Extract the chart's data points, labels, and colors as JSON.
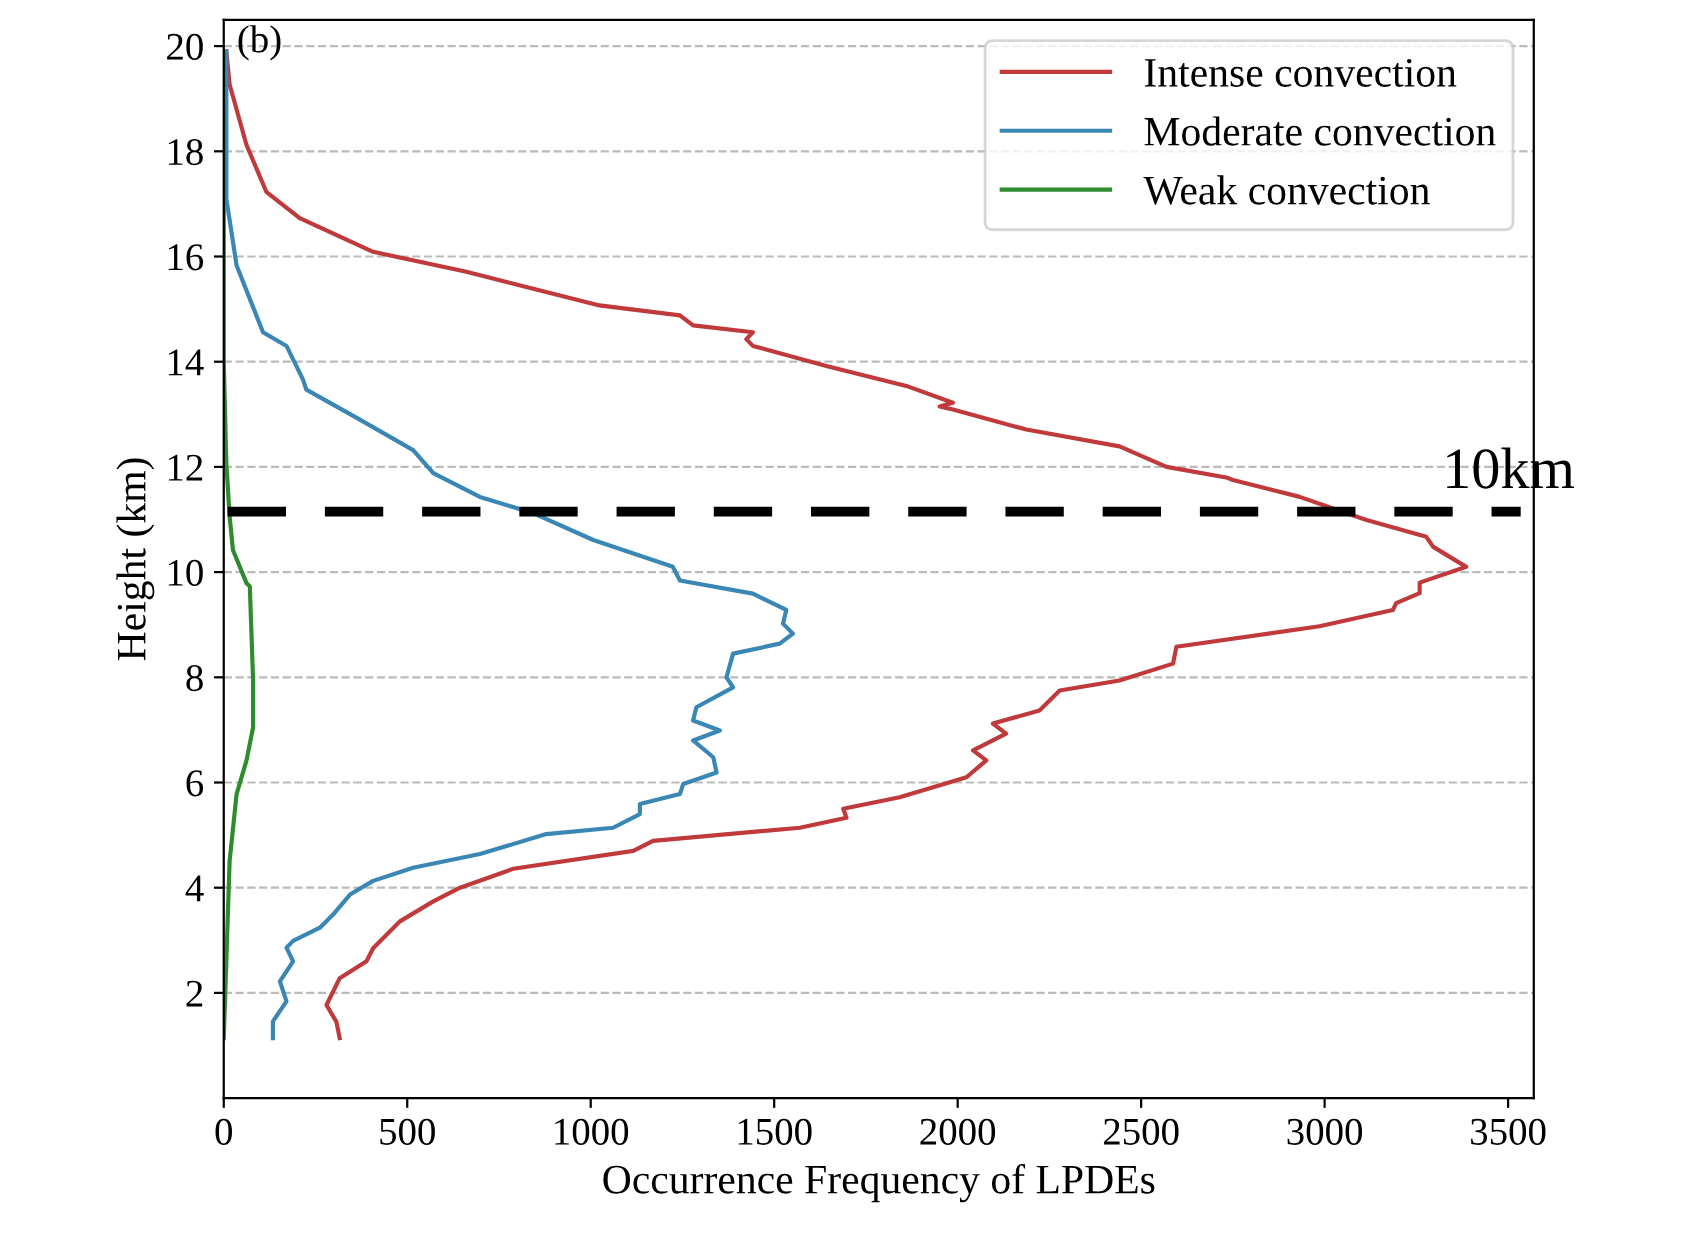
{
  "chart_data": {
    "type": "line",
    "xlabel": "Occurrence Frequency of LPDEs",
    "ylabel": "Height (km)",
    "annotations": [
      "(b)"
    ],
    "series": [
      {
        "name": "Intense convection",
        "color": "#c0393b",
        "x": [
          7,
          16,
          62,
          116,
          207,
          407,
          661,
          1024,
          1243,
          1279,
          1442,
          1424,
          1442,
          1642,
          1860,
          1987,
          1951,
          1987,
          2187,
          2441,
          2569,
          2732,
          2750,
          2932,
          3114,
          3277,
          3296,
          3386,
          3259,
          3259,
          3195,
          3186,
          2986,
          2596,
          2587,
          2441,
          2278,
          2223,
          2096,
          2132,
          2042,
          2078,
          2024,
          1842,
          1688,
          1697,
          1570,
          1170,
          1116,
          789,
          644,
          571,
          480,
          407,
          389,
          316,
          280,
          307,
          316
        ],
        "values": [
          19.9,
          19.27,
          18.12,
          17.23,
          16.73,
          16.09,
          15.71,
          15.07,
          14.88,
          14.69,
          14.56,
          14.43,
          14.3,
          13.92,
          13.54,
          13.22,
          13.15,
          13.09,
          12.71,
          12.39,
          12.0,
          11.8,
          11.75,
          11.43,
          10.99,
          10.67,
          10.48,
          10.1,
          9.8,
          9.6,
          9.41,
          9.28,
          8.97,
          8.58,
          8.26,
          7.94,
          7.75,
          7.37,
          7.12,
          6.93,
          6.61,
          6.42,
          6.1,
          5.72,
          5.5,
          5.33,
          5.14,
          4.89,
          4.7,
          4.36,
          4.0,
          3.74,
          3.36,
          2.85,
          2.6,
          2.28,
          1.77,
          1.45,
          1.14
        ]
      },
      {
        "name": "Moderate convection",
        "color": "#3a87b5",
        "x": [
          7,
          7,
          35,
          107,
          171,
          216,
          225,
          371,
          516,
          571,
          698,
          843,
          1007,
          1224,
          1243,
          1442,
          1533,
          1524,
          1551,
          1515,
          1388,
          1370,
          1388,
          1288,
          1279,
          1352,
          1279,
          1334,
          1343,
          1252,
          1243,
          1134,
          1134,
          1061,
          879,
          698,
          516,
          407,
          344,
          298,
          262,
          189,
          171,
          189,
          153,
          171,
          134,
          134
        ],
        "values": [
          19.9,
          17.1,
          15.83,
          14.56,
          14.3,
          13.66,
          13.47,
          12.9,
          12.32,
          11.88,
          11.43,
          11.12,
          10.61,
          10.1,
          9.84,
          9.59,
          9.28,
          9.02,
          8.83,
          8.64,
          8.45,
          8.0,
          7.81,
          7.43,
          7.18,
          6.99,
          6.8,
          6.48,
          6.19,
          5.97,
          5.78,
          5.59,
          5.4,
          5.14,
          5.02,
          4.64,
          4.38,
          4.13,
          3.87,
          3.49,
          3.24,
          2.99,
          2.86,
          2.6,
          2.22,
          1.84,
          1.46,
          1.14
        ]
      },
      {
        "name": "Weak convection",
        "color": "#2e8b2e",
        "x": [
          0,
          0,
          7,
          16,
          25,
          62,
          71,
          80,
          80,
          62,
          35,
          16,
          7,
          0
        ],
        "values": [
          19.9,
          14.0,
          12.07,
          11.06,
          10.42,
          9.79,
          9.73,
          7.94,
          7.05,
          6.42,
          5.78,
          4.51,
          2.6,
          1.14
        ]
      }
    ],
    "xlim": [
      0,
      3570
    ],
    "xticks": [
      0,
      500,
      1000,
      1500,
      2000,
      2500,
      3000,
      3500
    ],
    "ylim": [
      0,
      20.5
    ],
    "yticks": [
      2,
      4,
      6,
      8,
      10,
      12,
      14,
      16,
      18,
      20
    ],
    "ref_lines": [
      {
        "axis": "y",
        "value": 11.15,
        "label": "10km",
        "color": "#000000",
        "line_style": "dashed"
      }
    ],
    "grid": "y",
    "legend": "top right",
    "line_style": "solid",
    "marker": "none"
  }
}
